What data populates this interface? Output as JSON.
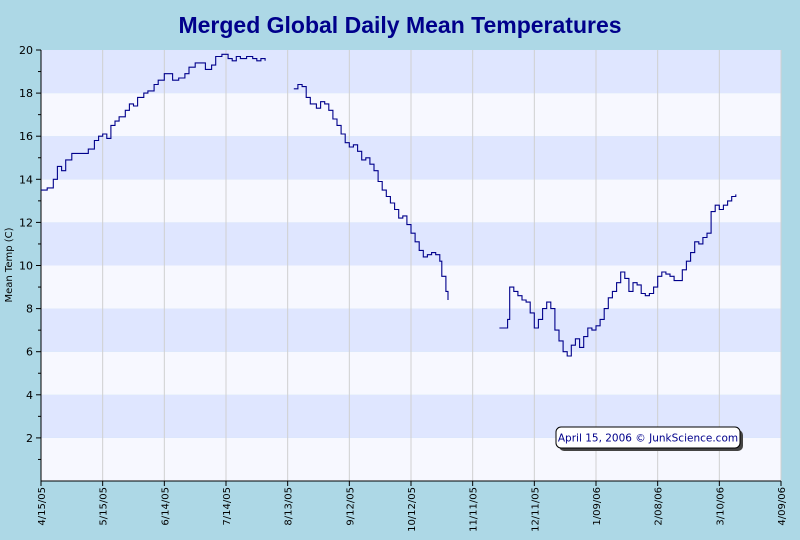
{
  "chart_data": {
    "type": "line",
    "title": "Merged Global Daily Mean Temperatures",
    "xlabel": "",
    "ylabel": "Mean Temp (C)",
    "y_ticks": [
      "2",
      "4",
      "6",
      "8",
      "10",
      "12",
      "14",
      "16",
      "18",
      "20"
    ],
    "ylim": [
      0,
      20
    ],
    "x_ticks": [
      "4/15/05",
      "5/15/05",
      "6/14/05",
      "7/14/05",
      "8/13/05",
      "9/12/05",
      "10/12/05",
      "11/11/05",
      "12/11/05",
      "1/09/06",
      "2/08/06",
      "3/10/06",
      "4/09/06"
    ],
    "grid": true,
    "legend": "none",
    "annotation": "April 15, 2006 © JunkScience.com",
    "colors": {
      "line": "#00008b",
      "band_light": "#dfe6ff",
      "band_white": "#f7f8ff",
      "background": "#add8e6"
    },
    "series": [
      {
        "segments": [
          [
            [
              0,
              13.5
            ],
            [
              3,
              13.6
            ],
            [
              6,
              14.0
            ],
            [
              8,
              14.6
            ],
            [
              10,
              14.4
            ],
            [
              12,
              14.9
            ],
            [
              15,
              15.2
            ],
            [
              19,
              15.2
            ],
            [
              23,
              15.4
            ],
            [
              26,
              15.8
            ],
            [
              28,
              16.0
            ],
            [
              30,
              16.1
            ],
            [
              32,
              15.9
            ],
            [
              34,
              16.5
            ],
            [
              36,
              16.7
            ],
            [
              38,
              16.9
            ],
            [
              41,
              17.2
            ],
            [
              43,
              17.5
            ],
            [
              45,
              17.4
            ],
            [
              47,
              17.8
            ],
            [
              50,
              18.0
            ],
            [
              52,
              18.1
            ],
            [
              55,
              18.4
            ],
            [
              57,
              18.6
            ],
            [
              60,
              18.9
            ],
            [
              62,
              18.9
            ],
            [
              64,
              18.6
            ],
            [
              67,
              18.7
            ],
            [
              70,
              18.9
            ],
            [
              72,
              19.2
            ],
            [
              75,
              19.4
            ],
            [
              78,
              19.4
            ],
            [
              80,
              19.1
            ],
            [
              83,
              19.3
            ],
            [
              85,
              19.7
            ],
            [
              88,
              19.8
            ],
            [
              91,
              19.6
            ],
            [
              93,
              19.5
            ],
            [
              95,
              19.7
            ],
            [
              97,
              19.6
            ],
            [
              100,
              19.7
            ],
            [
              103,
              19.6
            ],
            [
              105,
              19.5
            ],
            [
              107,
              19.6
            ],
            [
              109,
              19.5
            ]
          ],
          [
            [
              123,
              18.2
            ],
            [
              125,
              18.4
            ],
            [
              127,
              18.3
            ],
            [
              129,
              17.8
            ],
            [
              131,
              17.5
            ],
            [
              134,
              17.3
            ],
            [
              136,
              17.6
            ],
            [
              138,
              17.5
            ],
            [
              140,
              17.2
            ],
            [
              142,
              16.8
            ],
            [
              144,
              16.5
            ],
            [
              146,
              16.1
            ],
            [
              148,
              15.7
            ],
            [
              150,
              15.5
            ],
            [
              152,
              15.6
            ],
            [
              154,
              15.3
            ],
            [
              156,
              14.9
            ],
            [
              158,
              15.0
            ],
            [
              160,
              14.7
            ],
            [
              162,
              14.4
            ],
            [
              164,
              13.9
            ],
            [
              166,
              13.5
            ],
            [
              168,
              13.2
            ],
            [
              170,
              12.9
            ],
            [
              172,
              12.6
            ],
            [
              174,
              12.2
            ],
            [
              176,
              12.3
            ],
            [
              178,
              11.9
            ],
            [
              180,
              11.5
            ],
            [
              182,
              11.1
            ],
            [
              184,
              10.7
            ],
            [
              186,
              10.4
            ],
            [
              188,
              10.5
            ],
            [
              190,
              10.6
            ],
            [
              192,
              10.5
            ],
            [
              194,
              10.2
            ],
            [
              195,
              9.5
            ],
            [
              197,
              8.8
            ],
            [
              198,
              8.4
            ]
          ]
        ]
      },
      {
        "segments": [
          [
            [
              223,
              7.1
            ],
            [
              225,
              7.1
            ],
            [
              227,
              7.5
            ],
            [
              228,
              9.0
            ],
            [
              230,
              8.8
            ],
            [
              232,
              8.6
            ],
            [
              234,
              8.4
            ],
            [
              236,
              8.3
            ],
            [
              238,
              7.8
            ],
            [
              240,
              7.1
            ],
            [
              242,
              7.5
            ],
            [
              244,
              8.0
            ],
            [
              246,
              8.3
            ],
            [
              248,
              8.0
            ],
            [
              250,
              7.0
            ],
            [
              252,
              6.5
            ],
            [
              254,
              6.0
            ],
            [
              256,
              5.8
            ],
            [
              258,
              6.3
            ],
            [
              260,
              6.6
            ],
            [
              262,
              6.2
            ],
            [
              264,
              6.7
            ],
            [
              266,
              7.1
            ],
            [
              268,
              7.0
            ],
            [
              270,
              7.2
            ],
            [
              272,
              7.5
            ],
            [
              274,
              8.0
            ],
            [
              276,
              8.5
            ],
            [
              278,
              8.8
            ],
            [
              280,
              9.2
            ],
            [
              282,
              9.7
            ],
            [
              284,
              9.4
            ],
            [
              286,
              8.8
            ],
            [
              288,
              9.2
            ],
            [
              290,
              9.1
            ],
            [
              292,
              8.7
            ],
            [
              294,
              8.6
            ],
            [
              296,
              8.7
            ],
            [
              298,
              9.0
            ],
            [
              300,
              9.5
            ],
            [
              302,
              9.7
            ],
            [
              304,
              9.6
            ],
            [
              306,
              9.5
            ],
            [
              308,
              9.3
            ],
            [
              310,
              9.3
            ],
            [
              312,
              9.8
            ],
            [
              314,
              10.2
            ],
            [
              316,
              10.6
            ],
            [
              318,
              11.1
            ],
            [
              320,
              11.0
            ],
            [
              322,
              11.3
            ],
            [
              324,
              11.5
            ],
            [
              326,
              12.5
            ],
            [
              328,
              12.8
            ],
            [
              330,
              12.6
            ],
            [
              332,
              12.8
            ],
            [
              334,
              13.0
            ],
            [
              336,
              13.2
            ],
            [
              338,
              13.3
            ]
          ]
        ]
      }
    ]
  }
}
